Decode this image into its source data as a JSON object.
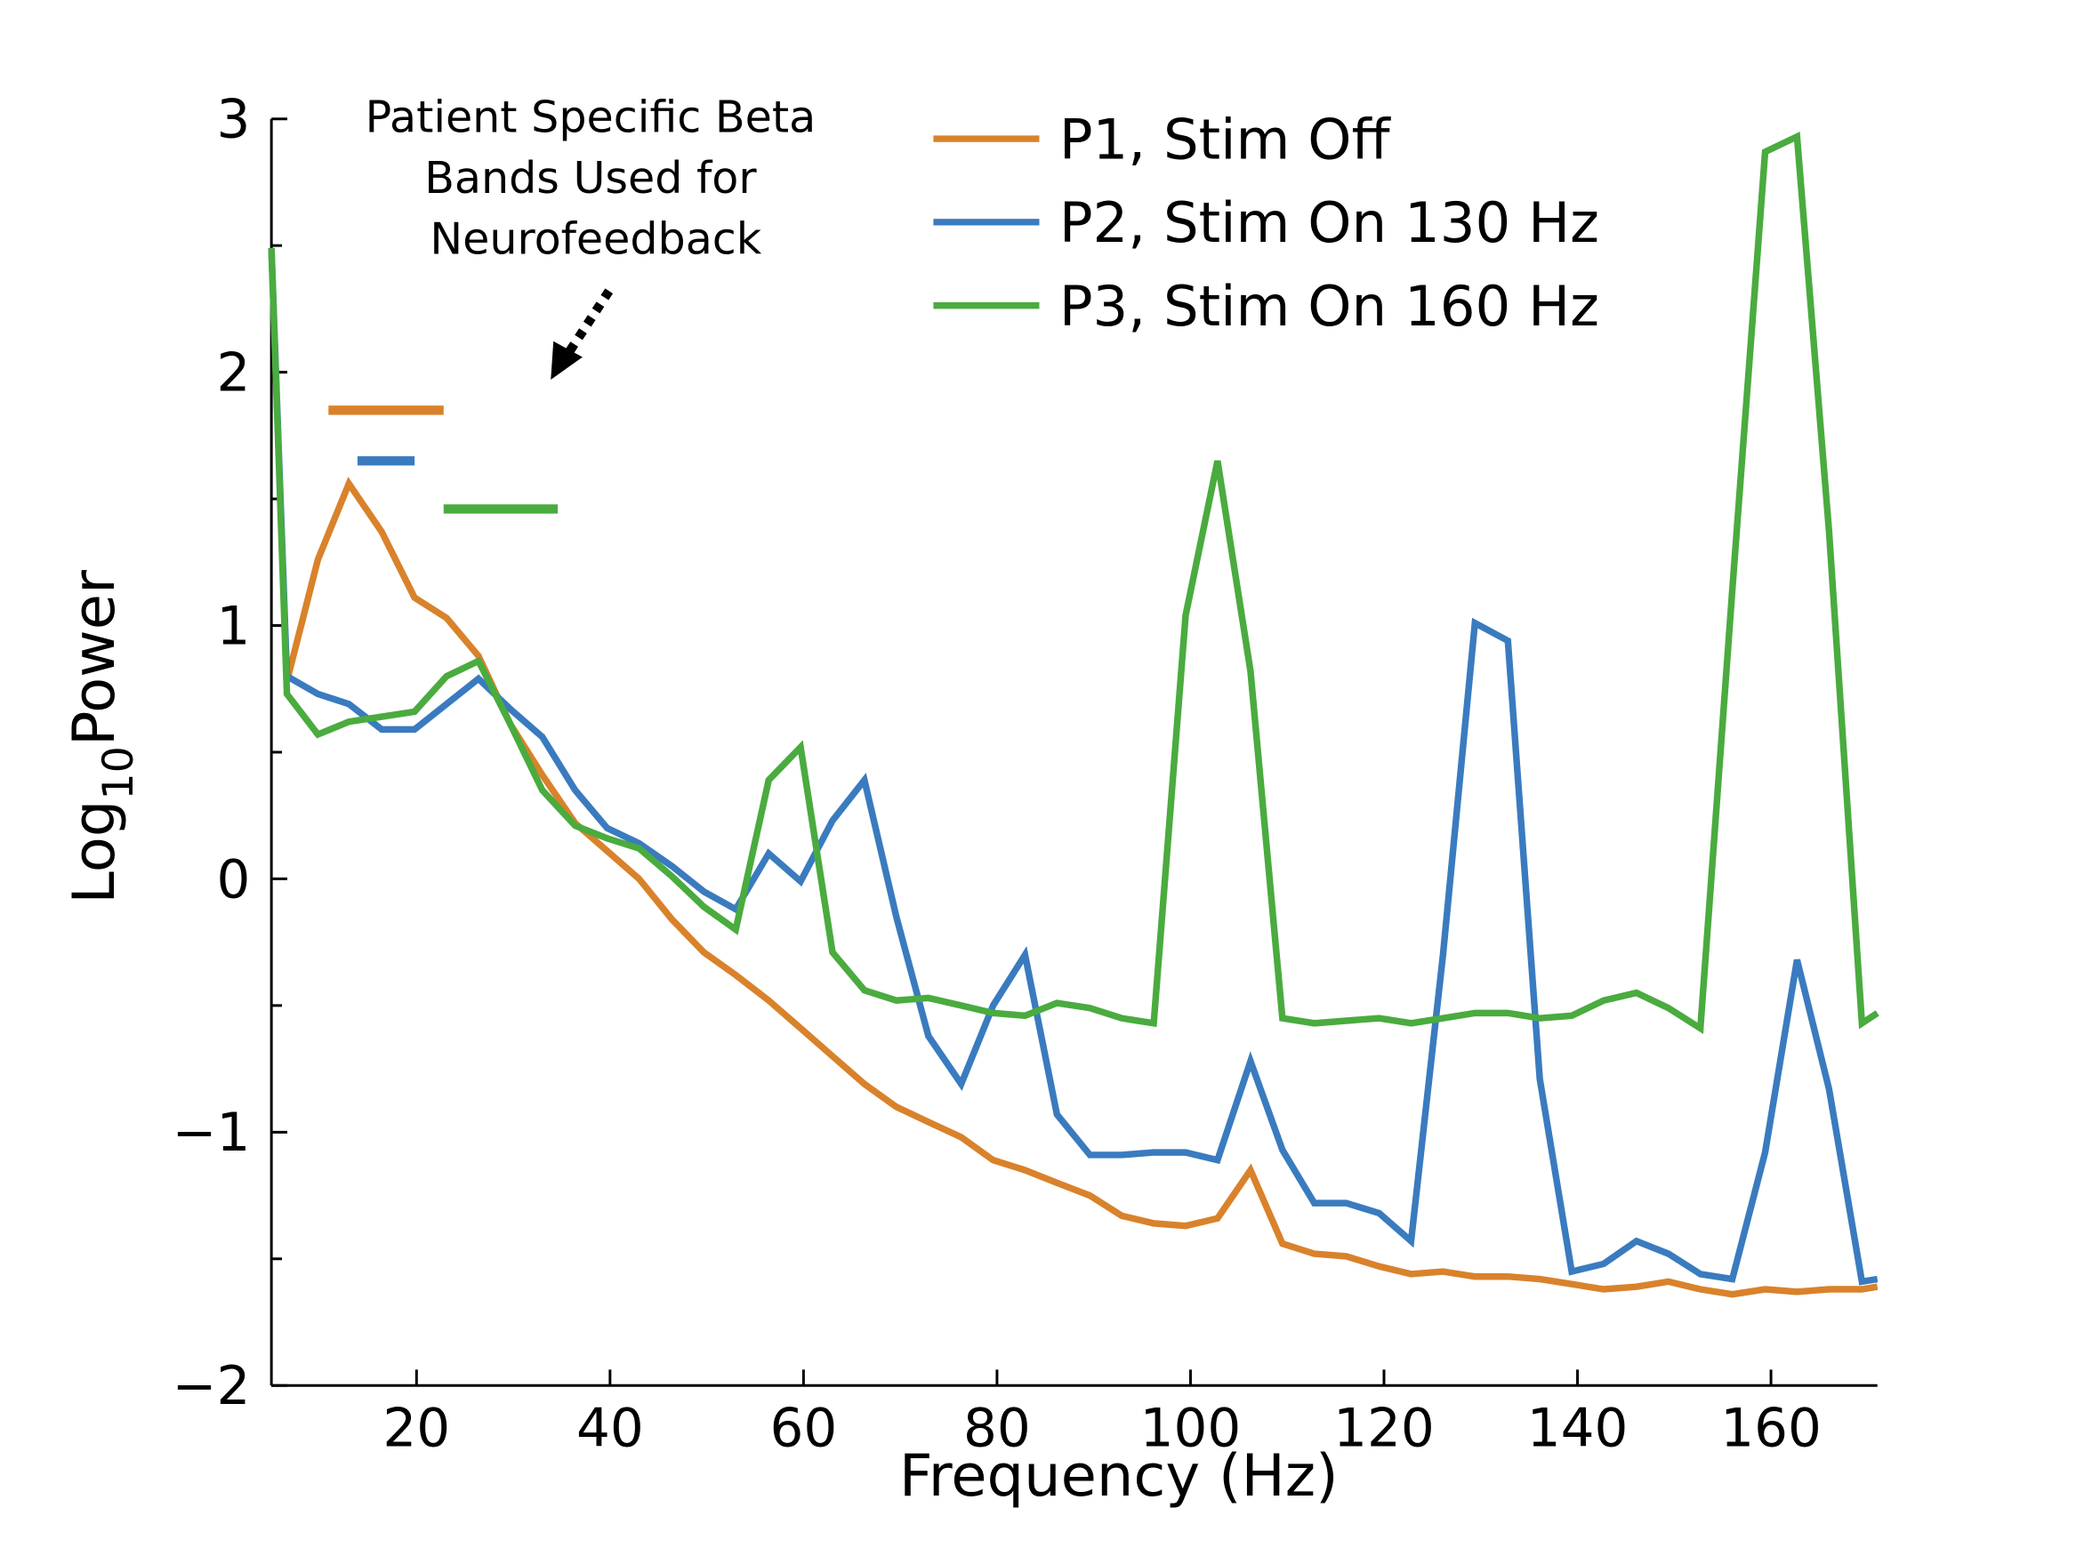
{
  "chart_data": {
    "type": "line",
    "xlabel": "Frequency (Hz)",
    "ylabel": [
      "Log",
      "10",
      "Power"
    ],
    "annotation": [
      "Patient Specific Beta",
      "Bands Used for",
      "Neurofeedback"
    ],
    "xlim": [
      5,
      171
    ],
    "ylim": [
      -2,
      3
    ],
    "xticks": [
      20,
      40,
      60,
      80,
      100,
      120,
      140,
      160
    ],
    "yticks": [
      {
        "value": -2,
        "label": "−2"
      },
      {
        "value": -1,
        "label": "−1"
      },
      0,
      1,
      2,
      3
    ],
    "yminor": [
      -1.5,
      -0.5,
      0.5,
      1.5,
      2.5
    ],
    "x": [
      5.0,
      6.6,
      9.8,
      13.0,
      16.4,
      19.8,
      23.1,
      26.4,
      29.7,
      33.0,
      36.4,
      39.7,
      43.0,
      46.4,
      49.7,
      53.0,
      56.4,
      59.7,
      63.0,
      66.3,
      69.6,
      72.9,
      76.3,
      79.6,
      82.9,
      86.2,
      89.6,
      92.9,
      96.2,
      99.5,
      102.8,
      106.2,
      109.5,
      112.8,
      116.1,
      119.5,
      122.8,
      126.1,
      129.4,
      132.8,
      136.1,
      139.4,
      142.7,
      146.1,
      149.4,
      152.7,
      156.0,
      159.4,
      162.7,
      166.0,
      169.4,
      171.0
    ],
    "series": [
      {
        "name": "P1, Stim Off",
        "color": "#d9822b",
        "values": [
          null,
          0.78,
          1.26,
          1.56,
          1.37,
          1.11,
          1.03,
          0.88,
          0.61,
          0.41,
          0.22,
          0.11,
          0.0,
          -0.16,
          -0.29,
          -0.38,
          -0.48,
          -0.59,
          -0.7,
          -0.81,
          -0.9,
          -0.96,
          -1.02,
          -1.11,
          -1.15,
          -1.2,
          -1.25,
          -1.33,
          -1.36,
          -1.37,
          -1.34,
          -1.15,
          -1.44,
          -1.48,
          -1.49,
          -1.53,
          -1.56,
          -1.55,
          -1.57,
          -1.57,
          -1.58,
          -1.6,
          -1.62,
          -1.61,
          -1.59,
          -1.62,
          -1.64,
          -1.62,
          -1.63,
          -1.62,
          -1.62,
          -1.61
        ]
      },
      {
        "name": "P2, Stim On 130 Hz",
        "color": "#3a7bbf",
        "values": [
          2.49,
          0.8,
          0.73,
          0.69,
          0.59,
          0.59,
          0.69,
          0.79,
          0.67,
          0.56,
          0.35,
          0.2,
          0.14,
          0.05,
          -0.05,
          -0.12,
          0.1,
          -0.01,
          0.23,
          0.39,
          -0.15,
          -0.62,
          -0.81,
          -0.5,
          -0.3,
          -0.93,
          -1.09,
          -1.09,
          -1.08,
          -1.08,
          -1.11,
          -0.72,
          -1.07,
          -1.28,
          -1.28,
          -1.32,
          -1.43,
          -0.3,
          1.01,
          0.94,
          -0.79,
          -1.55,
          -1.52,
          -1.43,
          -1.48,
          -1.56,
          -1.58,
          -1.08,
          -0.32,
          -0.83,
          -1.59,
          -1.58
        ]
      },
      {
        "name": "P3, Stim On 160 Hz",
        "color": "#4aab3f",
        "values": [
          2.49,
          0.73,
          0.57,
          0.62,
          0.64,
          0.66,
          0.8,
          0.86,
          0.61,
          0.35,
          0.21,
          0.16,
          0.12,
          0.01,
          -0.11,
          -0.2,
          0.39,
          0.52,
          -0.29,
          -0.44,
          -0.48,
          -0.47,
          -0.5,
          -0.53,
          -0.54,
          -0.49,
          -0.51,
          -0.55,
          -0.57,
          1.04,
          1.65,
          0.82,
          -0.55,
          -0.57,
          -0.56,
          -0.55,
          -0.57,
          -0.55,
          -0.53,
          -0.53,
          -0.55,
          -0.54,
          -0.48,
          -0.45,
          -0.51,
          -0.59,
          1.14,
          2.87,
          2.93,
          1.37,
          -0.57,
          -0.53
        ]
      }
    ],
    "bands": [
      {
        "color": "#d9822b",
        "x": [
          10.9,
          22.8
        ],
        "y": 1.85
      },
      {
        "color": "#3a7bbf",
        "x": [
          13.9,
          19.8
        ],
        "y": 1.65
      },
      {
        "color": "#4aab3f",
        "x": [
          22.8,
          34.6
        ],
        "y": 1.46
      }
    ]
  }
}
